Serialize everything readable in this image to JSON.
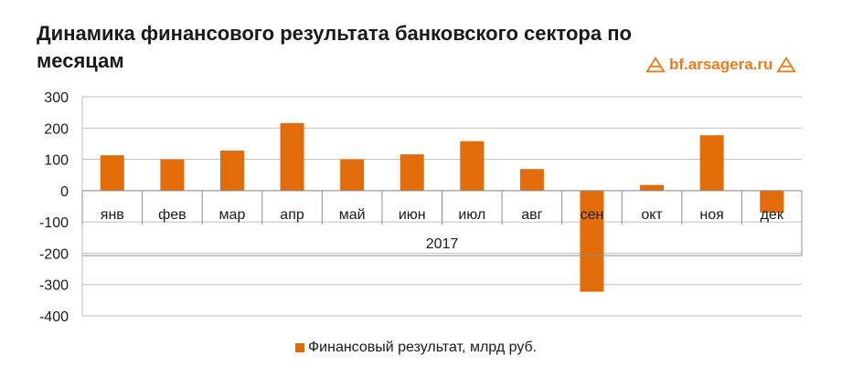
{
  "title": "Динамика финансового результата банковского сектора по месяцам",
  "brand": {
    "text": "bf.arsagera.ru",
    "color": "#ee7a1b",
    "icon": "arsagera-logo-icon"
  },
  "legend": {
    "label": "Финансовый результат, млрд руб.",
    "color": "#e36c0a"
  },
  "chart_data": {
    "type": "bar",
    "title": "Динамика финансового результата банковского сектора по месяцам",
    "categories": [
      "янв",
      "фев",
      "мар",
      "апр",
      "май",
      "июн",
      "июл",
      "авг",
      "сен",
      "окт",
      "ноя",
      "дек"
    ],
    "group_label": "2017",
    "series": [
      {
        "name": "Финансовый результат, млрд руб.",
        "values": [
          113,
          100,
          128,
          216,
          100,
          116,
          158,
          69,
          -323,
          18,
          177,
          -70
        ],
        "color": "#e36c0a"
      }
    ],
    "yticks": [
      300,
      200,
      100,
      0,
      -100,
      -200,
      -300,
      -400
    ],
    "ylim": [
      -400,
      300
    ],
    "grid": true,
    "legend_position": "bottom"
  }
}
